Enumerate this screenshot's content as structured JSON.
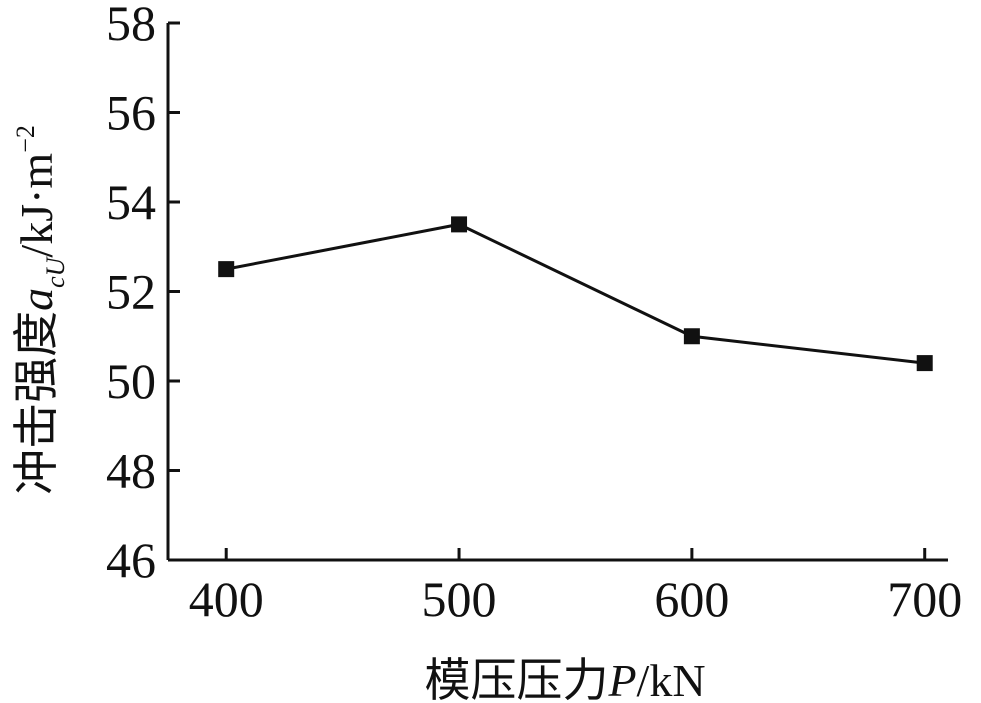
{
  "chart_data": {
    "type": "line",
    "x": [
      400,
      500,
      600,
      700
    ],
    "series": [
      {
        "values": [
          52.5,
          53.5,
          51.0,
          50.4
        ]
      }
    ],
    "xlabel": "模压压力P/kN",
    "ylabel": "冲击强度a_cU/kJ·m^-2",
    "xlabel_parts": {
      "cn": "模压压力",
      "var": "P",
      "unit": "/kN"
    },
    "ylabel_parts": {
      "cn": "冲击强度",
      "var": "a",
      "sub": "cU",
      "unit": "/kJ·m",
      "sup": "−2"
    },
    "xlim": [
      375,
      710
    ],
    "ylim": [
      46,
      58
    ],
    "x_ticks": [
      "400",
      "500",
      "600",
      "700"
    ],
    "y_ticks": [
      "46",
      "48",
      "50",
      "52",
      "54",
      "56",
      "58"
    ],
    "grid": false,
    "marker": "square",
    "line_color": "#111111"
  }
}
